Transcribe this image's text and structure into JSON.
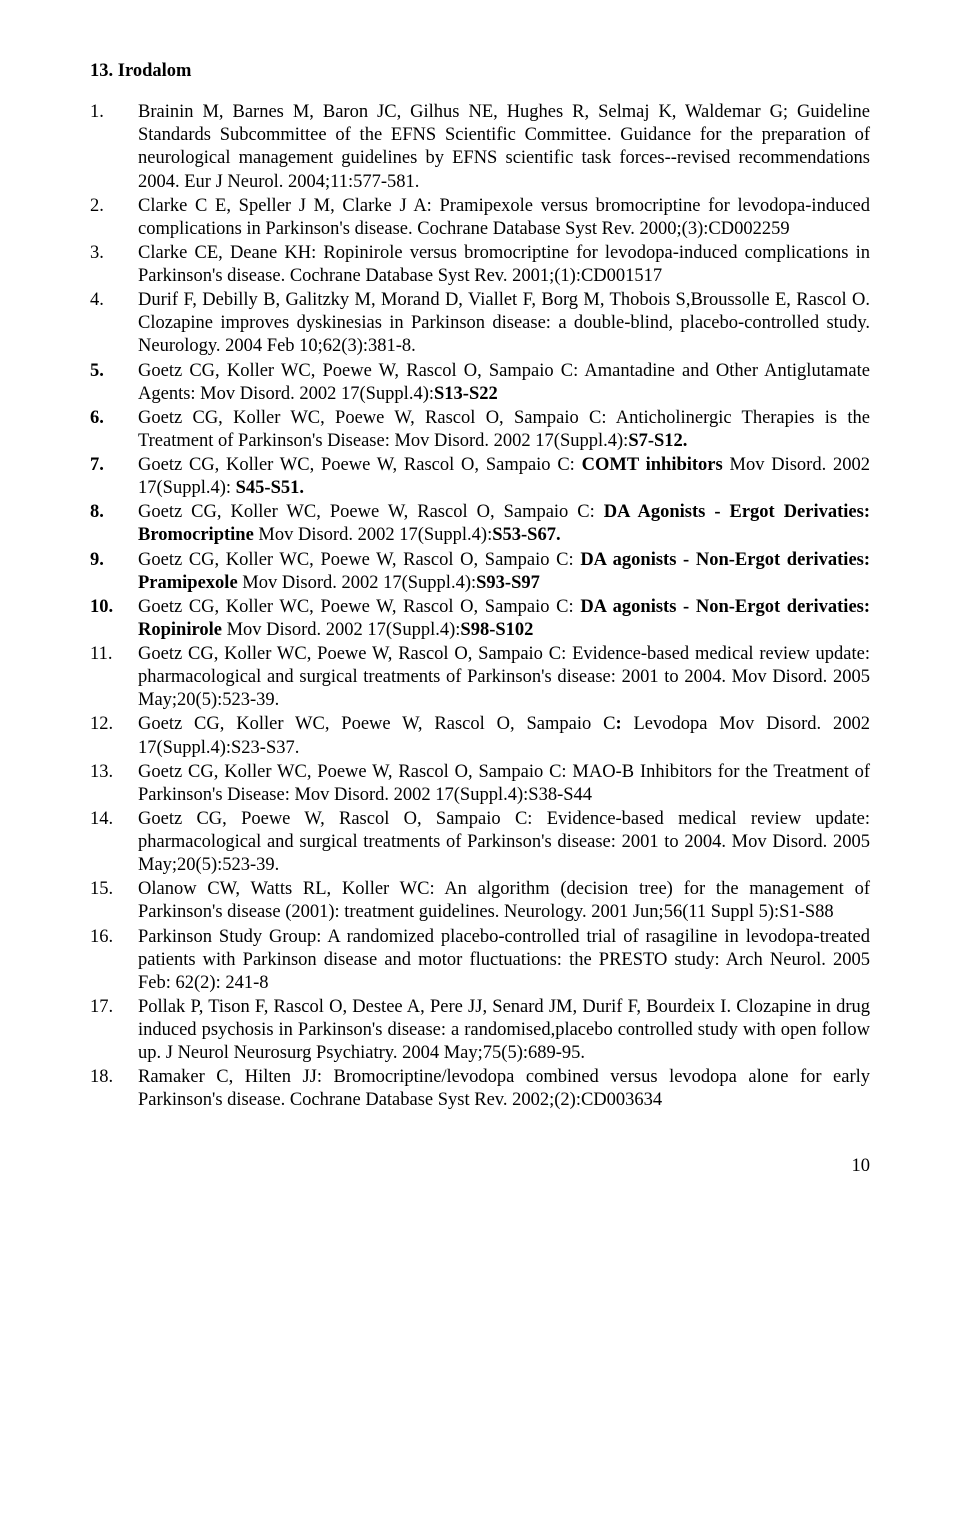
{
  "heading": "13. Irodalom",
  "page_number": "10",
  "refs": [
    {
      "n": "1.",
      "plain": "Brainin M, Barnes M, Baron JC, Gilhus NE, Hughes R, Selmaj K, Waldemar G; Guideline Standards Subcommittee of the EFNS Scientific Committee. Guidance for the preparation of neurological management guidelines by EFNS scientific task forces--revised recommendations 2004. Eur J Neurol. 2004;11:577-581."
    },
    {
      "n": "2.",
      "plain": "Clarke C E, Speller J M, Clarke J A: Pramipexole versus bromocriptine for levodopa-induced complications in Parkinson's disease. Cochrane Database Syst Rev. 2000;(3):CD002259"
    },
    {
      "n": "3.",
      "plain": "Clarke CE, Deane KH: Ropinirole versus bromocriptine for levodopa-induced complications in Parkinson's disease. Cochrane Database Syst Rev. 2001;(1):CD001517"
    },
    {
      "n": "4.",
      "plain": "Durif F, Debilly B, Galitzky M, Morand D, Viallet F, Borg M, Thobois S,Broussolle E, Rascol O. Clozapine improves dyskinesias in Parkinson disease: a double-blind, placebo-controlled study. Neurology. 2004 Feb 10;62(3):381-8."
    },
    {
      "n": "5.",
      "nbold": true,
      "parts": [
        {
          "t": "Goetz CG, Koller WC, Poewe W, Rascol O, Sampaio C: Amantadine and Other Antiglutamate Agents: Mov Disord. 2002 17(Suppl.4):"
        },
        {
          "t": "S13-S22",
          "b": true
        }
      ]
    },
    {
      "n": "6.",
      "nbold": true,
      "parts": [
        {
          "t": "Goetz CG, Koller WC, Poewe W, Rascol O, Sampaio C: Anticholinergic Therapies is the Treatment of Parkinson's Disease: Mov Disord. 2002 17(Suppl.4):"
        },
        {
          "t": "S7-S12.",
          "b": true
        }
      ]
    },
    {
      "n": "7.",
      "nbold": true,
      "parts": [
        {
          "t": "Goetz CG, Koller WC, Poewe W, Rascol O, Sampaio C: "
        },
        {
          "t": "COMT inhibitors ",
          "b": true
        },
        {
          "t": "Mov Disord. 2002 17(Suppl.4): "
        },
        {
          "t": "S45-S51.",
          "b": true
        }
      ]
    },
    {
      "n": "8.",
      "nbold": true,
      "parts": [
        {
          "t": "Goetz CG, Koller WC, Poewe W, Rascol O, Sampaio C: "
        },
        {
          "t": "DA Agonists - Ergot Derivaties: Bromocriptine ",
          "b": true
        },
        {
          "t": "Mov Disord. 2002 17(Suppl.4):"
        },
        {
          "t": "S53-S67.",
          "b": true
        }
      ]
    },
    {
      "n": "9.",
      "nbold": true,
      "parts": [
        {
          "t": "Goetz CG, Koller WC, Poewe W, Rascol O, Sampaio C: "
        },
        {
          "t": "DA agonists - Non-Ergot derivaties: Pramipexole ",
          "b": true
        },
        {
          "t": "Mov Disord. 2002 17(Suppl.4):"
        },
        {
          "t": "S93-S97",
          "b": true
        }
      ]
    },
    {
      "n": "10.",
      "nbold": true,
      "parts": [
        {
          "t": "Goetz CG, Koller WC, Poewe W, Rascol O, Sampaio C: "
        },
        {
          "t": "DA agonists - Non-Ergot derivaties: Ropinirole ",
          "b": true
        },
        {
          "t": "Mov Disord. 2002 17(Suppl.4):"
        },
        {
          "t": "S98-S102",
          "b": true
        }
      ]
    },
    {
      "n": "11.",
      "plain": "Goetz CG, Koller WC, Poewe W, Rascol O, Sampaio C: Evidence-based medical review update: pharmacological and surgical treatments of Parkinson's disease: 2001 to 2004. Mov Disord. 2005 May;20(5):523-39."
    },
    {
      "n": "12.",
      "parts": [
        {
          "t": "Goetz CG, Koller WC, Poewe W, Rascol O, Sampaio C"
        },
        {
          "t": ": ",
          "b": true
        },
        {
          "t": "Levodopa Mov Disord. 2002 17(Suppl.4):S23-S37."
        }
      ]
    },
    {
      "n": "13.",
      "plain": "Goetz CG, Koller WC, Poewe W, Rascol O, Sampaio C: MAO-B Inhibitors for the Treatment of Parkinson's Disease: Mov Disord. 2002 17(Suppl.4):S38-S44"
    },
    {
      "n": "14.",
      "plain": "Goetz CG, Poewe W, Rascol O, Sampaio C: Evidence-based medical review update: pharmacological and surgical treatments of Parkinson's disease: 2001 to 2004. Mov Disord. 2005 May;20(5):523-39."
    },
    {
      "n": "15.",
      "plain": "Olanow CW, Watts RL, Koller WC: An algorithm (decision tree) for the management of Parkinson's disease (2001): treatment guidelines. Neurology. 2001 Jun;56(11 Suppl 5):S1-S88"
    },
    {
      "n": "16.",
      "plain": "Parkinson Study Group: A randomized placebo-controlled trial of rasagiline in levodopa-treated patients with Parkinson disease and motor fluctuations: the PRESTO study: Arch Neurol. 2005 Feb: 62(2): 241-8"
    },
    {
      "n": "17.",
      "plain": "Pollak P, Tison F, Rascol O, Destee A, Pere JJ, Senard JM, Durif F, Bourdeix I. Clozapine in drug induced psychosis in Parkinson's disease: a randomised,placebo controlled study with open follow up. J Neurol Neurosurg Psychiatry. 2004 May;75(5):689-95."
    },
    {
      "n": "18.",
      "plain": "Ramaker C, Hilten JJ: Bromocriptine/levodopa combined versus levodopa alone for early Parkinson's disease. Cochrane Database Syst Rev. 2002;(2):CD003634"
    }
  ]
}
